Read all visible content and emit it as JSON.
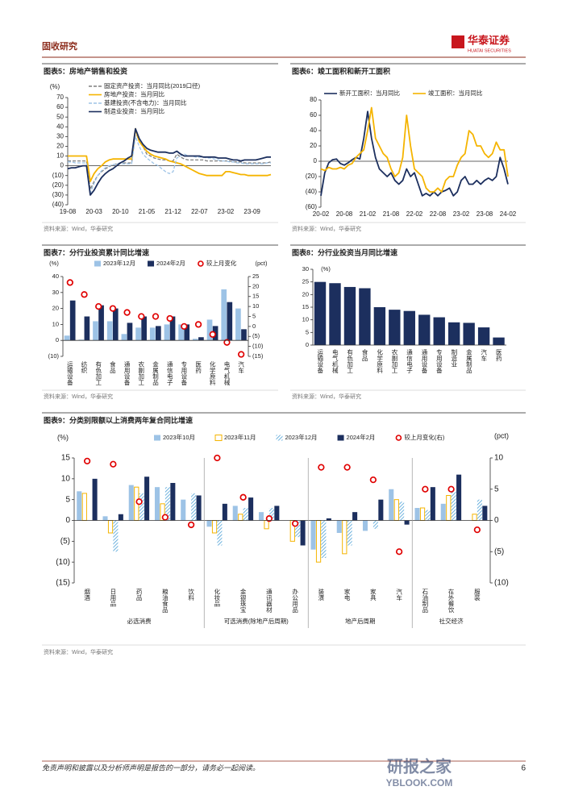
{
  "header": {
    "section": "固收研究",
    "brand": "华泰证券",
    "brand_en": "HUATAI SECURITIES"
  },
  "chart_data": [
    {
      "type": "line",
      "label": "图表5：房地产销售和投资",
      "source": "资料来源：Wind，华泰研究",
      "unit": "(%)",
      "categories": [
        "19-08",
        null,
        null,
        null,
        null,
        null,
        null,
        "20-03",
        null,
        null,
        null,
        null,
        null,
        null,
        "20-10",
        null,
        null,
        null,
        null,
        null,
        null,
        "21-05",
        null,
        null,
        null,
        null,
        null,
        null,
        "21-12",
        null,
        null,
        null,
        null,
        null,
        null,
        "22-07",
        null,
        null,
        null,
        null,
        null,
        null,
        "23-02",
        null,
        null,
        null,
        null,
        null,
        null,
        "23-09",
        null,
        null,
        null,
        null,
        null
      ],
      "ylim": [
        -40,
        70
      ],
      "yticks": [
        {
          "value": -40,
          "label": "(40)"
        },
        {
          "value": -30,
          "label": "(30)"
        },
        {
          "value": -20,
          "label": "(20)"
        },
        {
          "value": -10,
          "label": "(10)"
        },
        0,
        10,
        20,
        30,
        40,
        50,
        60,
        70
      ],
      "series": [
        {
          "name": "固定资产投资：当月同比(2019口径)",
          "color": "#7f7f7f",
          "dash": true,
          "values": [
            5,
            5,
            5,
            5,
            5,
            5,
            -24,
            -16,
            -10,
            -6,
            -3,
            -1,
            1,
            2,
            3,
            3,
            3,
            3,
            35,
            25,
            20,
            12,
            10,
            8,
            7,
            6,
            6,
            5,
            5,
            12,
            9,
            7,
            6,
            6,
            6,
            6,
            6,
            5,
            5,
            5,
            5,
            5,
            5,
            5,
            4,
            4,
            4,
            3,
            3,
            3,
            3,
            3,
            3,
            3,
            4
          ]
        },
        {
          "name": "房地产投资：当月同比",
          "color": "#f5b400",
          "dash": false,
          "values": [
            10,
            10,
            10,
            10,
            10,
            10,
            -16,
            -8,
            -3,
            0,
            4,
            6,
            7,
            7,
            7,
            7,
            7,
            7,
            38,
            25,
            20,
            15,
            12,
            10,
            9,
            8,
            7,
            5,
            4,
            3,
            2,
            0,
            -2,
            -4,
            -6,
            -8,
            -9,
            -10,
            -10,
            -10,
            -10,
            -10,
            -6,
            -6,
            -7,
            -8,
            -9,
            -9,
            -10,
            -10,
            -10,
            -10,
            -10,
            -10,
            -9
          ]
        },
        {
          "name": "基建投资(不含电力)：当月同比",
          "color": "#9dc3e6",
          "dash": true,
          "values": [
            4,
            4,
            3,
            3,
            3,
            3,
            -28,
            -18,
            -10,
            -5,
            -2,
            0,
            1,
            2,
            2,
            2,
            2,
            2,
            30,
            20,
            12,
            8,
            5,
            2,
            0,
            -3,
            -6,
            -8,
            -6,
            8,
            10,
            12,
            10,
            10,
            9,
            9,
            9,
            8,
            8,
            7,
            6,
            5,
            5,
            4,
            4,
            3,
            3,
            2,
            2,
            2,
            2,
            2,
            2,
            3,
            3
          ]
        },
        {
          "name": "制造业投资：当月同比",
          "color": "#1c2f5e",
          "dash": false,
          "values": [
            -3,
            -2,
            -2,
            -1,
            0,
            0,
            -30,
            -25,
            -18,
            -12,
            -8,
            -5,
            -3,
            0,
            3,
            5,
            8,
            10,
            38,
            28,
            22,
            18,
            16,
            15,
            14,
            14,
            14,
            13,
            13,
            15,
            12,
            10,
            10,
            10,
            10,
            10,
            9,
            9,
            9,
            9,
            8,
            8,
            8,
            7,
            6,
            6,
            5,
            6,
            6,
            6,
            6,
            7,
            8,
            9,
            9
          ]
        }
      ]
    },
    {
      "type": "line",
      "label": "图表6：竣工面积和新开工面积",
      "source": "资料来源：Wind，华泰研究",
      "categories": [
        "20-02",
        null,
        null,
        null,
        null,
        null,
        "20-08",
        null,
        null,
        null,
        null,
        null,
        "21-02",
        null,
        null,
        null,
        null,
        null,
        "21-08",
        null,
        null,
        null,
        null,
        null,
        "22-02",
        null,
        null,
        null,
        null,
        null,
        "22-08",
        null,
        null,
        null,
        null,
        null,
        "23-02",
        null,
        null,
        null,
        null,
        null,
        "23-08",
        null,
        null,
        null,
        null,
        null,
        "24-02"
      ],
      "ylim": [
        -60,
        80
      ],
      "yticks": [
        {
          "value": -60,
          "label": "(60)"
        },
        {
          "value": -40,
          "label": "(40)"
        },
        {
          "value": -20,
          "label": "(20)"
        },
        0,
        20,
        40,
        60,
        80
      ],
      "series": [
        {
          "name": "新开工面积：当月同比",
          "color": "#1c2f5e",
          "dash": false,
          "values": [
            -45,
            -15,
            -2,
            2,
            3,
            -3,
            -5,
            -2,
            2,
            5,
            3,
            30,
            65,
            30,
            5,
            -10,
            -15,
            -20,
            -15,
            -25,
            -30,
            -25,
            -10,
            -20,
            -15,
            -30,
            -45,
            -42,
            -45,
            -40,
            -45,
            -40,
            -38,
            -35,
            -45,
            -40,
            -25,
            -20,
            -30,
            -30,
            -25,
            -30,
            -25,
            -22,
            -25,
            -20,
            5,
            -10,
            -30
          ]
        },
        {
          "name": "竣工面积：当月同比",
          "color": "#f5b400",
          "dash": false,
          "values": [
            -10,
            -12,
            -8,
            -10,
            -10,
            -8,
            -10,
            -5,
            -3,
            5,
            10,
            15,
            40,
            70,
            30,
            20,
            10,
            5,
            -10,
            -20,
            -15,
            5,
            60,
            20,
            -10,
            -15,
            -20,
            -35,
            -40,
            -40,
            -35,
            -40,
            -25,
            -20,
            -20,
            -5,
            5,
            10,
            40,
            35,
            20,
            20,
            10,
            5,
            10,
            25,
            15,
            15,
            -20
          ]
        }
      ]
    },
    {
      "type": "bar",
      "label": "图表7：分行业投资累计同比增速",
      "source": "资料来源：Wind，华泰研究",
      "unit": "(%)",
      "unit2": "(pct)",
      "categories": [
        "运输设备",
        "纺织",
        "有色加工",
        "食品",
        "通用设备",
        "农副加工",
        "金属制品",
        "通信电子",
        "专用设备",
        "医药",
        "化学原料",
        "电气机械",
        "汽车"
      ],
      "ylim": [
        -10,
        40
      ],
      "yticks": [
        {
          "value": -10,
          "label": "(10)"
        },
        0,
        10,
        20,
        30,
        40
      ],
      "y2lim": [
        -15,
        25
      ],
      "y2ticks": [
        {
          "value": -15,
          "label": "(15)"
        },
        {
          "value": -10,
          "label": "(10)"
        },
        {
          "value": -5,
          "label": "(5)"
        },
        0,
        5,
        10,
        15,
        20,
        25
      ],
      "series": [
        {
          "name": "2023年12月",
          "color": "#9dc3e6",
          "style": "solid",
          "values": [
            3,
            0.5,
            12,
            12,
            4,
            8,
            8,
            10,
            10,
            1,
            13,
            32,
            20
          ]
        },
        {
          "name": "2024年2月",
          "color": "#1c2f5e",
          "style": "solid",
          "values": [
            25,
            15,
            22,
            20,
            11,
            15,
            9,
            15,
            10,
            2,
            9,
            24,
            7
          ]
        },
        {
          "name": "较上月变化",
          "color": "#e00000",
          "type": "scatter",
          "axis": "y2",
          "values": [
            22,
            16,
            10,
            9,
            7,
            5,
            5,
            4,
            0,
            1,
            -4,
            -8,
            -14
          ]
        }
      ]
    },
    {
      "type": "bar",
      "label": "图表8：分行业投资当月同比增速",
      "source": "资料来源：Wind，华泰研究",
      "unit": "(%)",
      "categories": [
        "运输设备",
        "电气机械",
        "有色加工",
        "食品",
        "化学原料",
        "农副加工",
        "通信电子",
        "通用设备",
        "专用设备",
        "制造业",
        "金属制品",
        "汽车",
        "医药"
      ],
      "values": [
        25,
        24.5,
        23,
        22.5,
        15,
        14,
        13.5,
        12,
        11,
        9,
        8.8,
        7,
        3
      ],
      "color": "#1c2f5e",
      "ylim": [
        0,
        30
      ],
      "yticks": [
        0,
        5,
        10,
        15,
        20,
        25,
        30
      ]
    },
    {
      "type": "bar",
      "label": "图表9：分类别限额以上消费两年复合同比增速",
      "source": "资料来源：Wind，华泰研究",
      "unit": "(%)",
      "unit2": "(pct)",
      "categories": [
        "烟酒",
        "日用品",
        "药品",
        "粮油食品",
        "饮料",
        "化妆品",
        "金银珠宝",
        "通讯器材",
        "办公用品",
        "装潢",
        "家电",
        "家具",
        "汽车",
        "石油制品",
        "在外餐饮",
        "服装"
      ],
      "groups": [
        {
          "label": "必选消费",
          "span": [
            0,
            4
          ]
        },
        {
          "label": "可选消费(除地产后周期)",
          "span": [
            5,
            8
          ]
        },
        {
          "label": "地产后周期",
          "span": [
            9,
            12
          ]
        },
        {
          "label": "社交经济",
          "span": [
            13,
            15
          ]
        }
      ],
      "ylim": [
        -15,
        15
      ],
      "yticks": [
        {
          "value": -15,
          "label": "(15)"
        },
        {
          "value": -10,
          "label": "(10)"
        },
        {
          "value": -5,
          "label": "(5)"
        },
        0,
        5,
        10,
        15
      ],
      "y2lim": [
        -10,
        10
      ],
      "y2ticks": [
        {
          "value": -10,
          "label": "(10)"
        },
        {
          "value": -5,
          "label": "(5)"
        },
        0,
        5,
        10
      ],
      "series": [
        {
          "name": "2023年10月",
          "color": "#9dc3e6",
          "style": "solid",
          "values": [
            7,
            1,
            8.5,
            8,
            5,
            -1.5,
            3.5,
            2,
            0,
            -7,
            -3,
            -2.5,
            7.5,
            3,
            4,
            0
          ]
        },
        {
          "name": "2023年11月",
          "color": "#f5b400",
          "style": "outline",
          "values": [
            6.5,
            -3,
            8,
            4,
            0,
            -3,
            1.5,
            -2,
            -5,
            -10,
            -8,
            0,
            5,
            3,
            6,
            1.5
          ]
        },
        {
          "name": "2023年12月",
          "color": "#4a9fd6",
          "style": "hatch",
          "values": [
            0,
            -7.5,
            6.5,
            8,
            6.5,
            -6,
            3,
            3,
            -4,
            -9,
            -6,
            -2,
            4.5,
            2.5,
            7,
            5
          ]
        },
        {
          "name": "2024年2月",
          "color": "#1c2f5e",
          "style": "solid",
          "values": [
            10,
            1.5,
            10.5,
            9,
            6,
            4,
            5.5,
            3.5,
            -6,
            0.5,
            2,
            5,
            -1,
            8,
            11,
            3.5
          ]
        },
        {
          "name": "较上月变化(右)",
          "color": "#e00000",
          "type": "scatter",
          "axis": "y2",
          "values": [
            9.5,
            9,
            3,
            0.5,
            -0.7,
            10,
            3.7,
            0.3,
            -0.5,
            8.5,
            8.5,
            6.5,
            -5,
            5,
            5,
            -1.5
          ]
        }
      ]
    }
  ],
  "watermark": {
    "title": "研报之家",
    "url": "YBLOOK.COM"
  },
  "footer": {
    "disclaimer": "免责声明和披露以及分析师声明是报告的一部分，请务必一起阅读。",
    "page": 6
  }
}
